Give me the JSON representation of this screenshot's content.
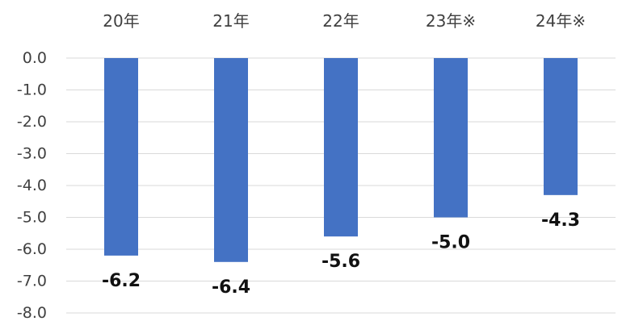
{
  "chart_data": {
    "type": "bar",
    "title": "",
    "xlabel": "",
    "ylabel": "",
    "categories": [
      "20年",
      "21年",
      "22年",
      "23年※",
      "24年※"
    ],
    "values": [
      -6.2,
      -6.4,
      -5.6,
      -5.0,
      -4.3
    ],
    "data_labels": [
      "-6.2",
      "-6.4",
      "-5.6",
      "-5.0",
      "-4.3"
    ],
    "ylim": [
      -8.0,
      0.0
    ],
    "yticks": [
      "0.0",
      "-1.0",
      "-2.0",
      "-3.0",
      "-4.0",
      "-5.0",
      "-6.0",
      "-7.0",
      "-8.0"
    ],
    "category_axis_position": "top",
    "grid": true,
    "legend": "none",
    "bar_color": "#4472C4"
  }
}
